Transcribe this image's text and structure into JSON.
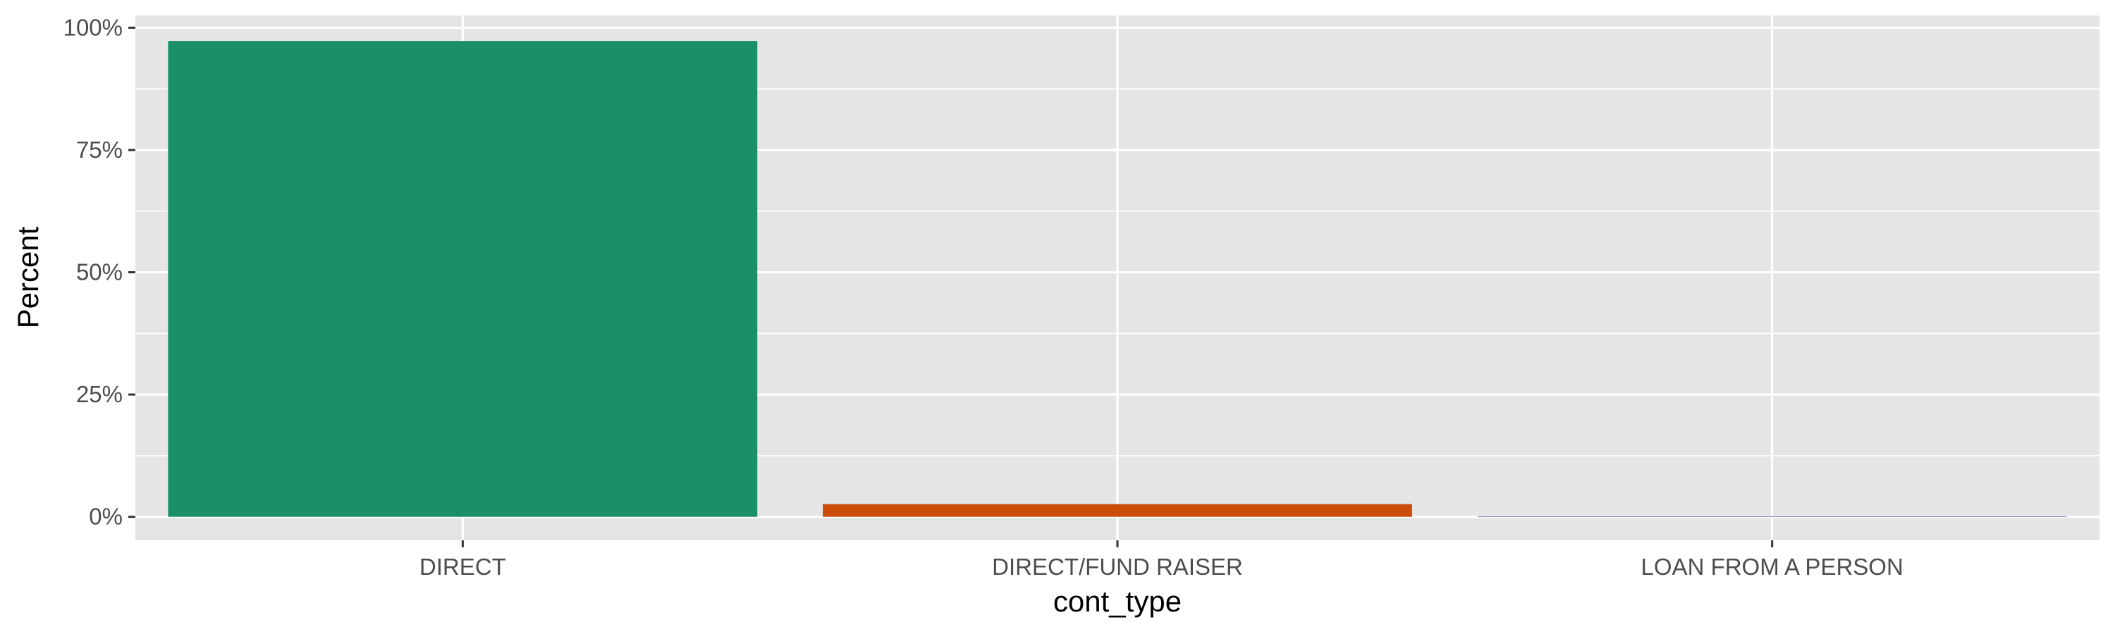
{
  "chart_data": {
    "type": "bar",
    "categories": [
      "DIRECT",
      "DIRECT/FUND RAISER",
      "LOAN FROM A PERSON"
    ],
    "values": [
      97.3,
      2.6,
      0.1
    ],
    "colors": [
      "#1b9066",
      "#cc4c0a",
      "#7570b3"
    ],
    "xlabel": "cont_type",
    "ylabel": "Percent",
    "ylim": [
      -4.8,
      102.5
    ],
    "yticks": [
      0,
      25,
      50,
      75,
      100
    ],
    "ytick_labels": [
      "0%",
      "25%",
      "50%",
      "75%",
      "100%"
    ],
    "grid": true,
    "legend": "none",
    "panel_background": "#e5e5e5",
    "grid_color": "#ffffff"
  }
}
